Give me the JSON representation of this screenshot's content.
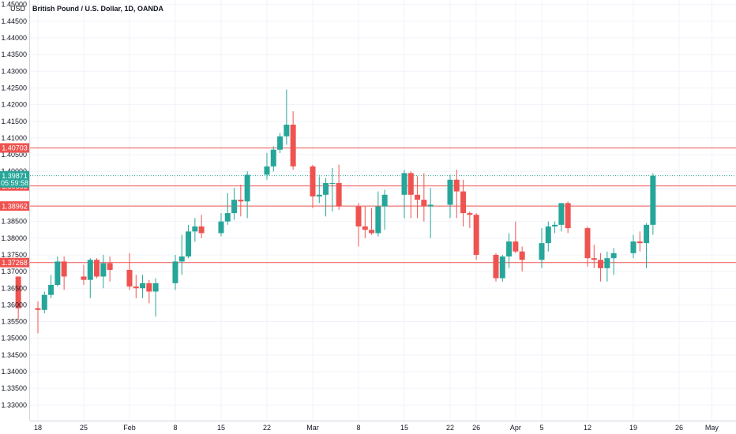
{
  "header": {
    "title": "British Pound / U.S. Dollar, 1D, OANDA",
    "unit": "USD"
  },
  "colors": {
    "up": "#26a69a",
    "down": "#ef5350",
    "level_line": "#ef5350",
    "grid": "#f0f3fa",
    "axis_text": "#131722",
    "current_price_line": "#26a69a"
  },
  "chart_data": {
    "type": "candlestick",
    "title": "British Pound / U.S. Dollar, 1D, OANDA",
    "ylabel": "USD",
    "ylim": [
      1.326,
      1.4555
    ],
    "y_ticks": [
      "1.33000",
      "1.33500",
      "1.34000",
      "1.34500",
      "1.35000",
      "1.35500",
      "1.36000",
      "1.36500",
      "1.37000",
      "1.37500",
      "1.38000",
      "1.38500",
      "1.39000",
      "1.39500",
      "1.40000",
      "1.40500",
      "1.41000",
      "1.41500",
      "1.42000",
      "1.42500",
      "1.43000",
      "1.43500",
      "1.44000",
      "1.44500",
      "1.45000"
    ],
    "x_ticks": [
      {
        "label": "18",
        "date": "2021-01-18"
      },
      {
        "label": "25",
        "date": "2021-01-25"
      },
      {
        "label": "Feb",
        "date": "2021-02-01"
      },
      {
        "label": "8",
        "date": "2021-02-08"
      },
      {
        "label": "15",
        "date": "2021-02-15"
      },
      {
        "label": "22",
        "date": "2021-02-22"
      },
      {
        "label": "Mar",
        "date": "2021-03-01"
      },
      {
        "label": "8",
        "date": "2021-03-08"
      },
      {
        "label": "15",
        "date": "2021-03-15"
      },
      {
        "label": "22",
        "date": "2021-03-22"
      },
      {
        "label": "26",
        "date": "2021-03-26"
      },
      {
        "label": "Apr",
        "date": "2021-04-01"
      },
      {
        "label": "5",
        "date": "2021-04-05"
      },
      {
        "label": "12",
        "date": "2021-04-12"
      },
      {
        "label": "19",
        "date": "2021-04-19"
      },
      {
        "label": "26",
        "date": "2021-04-26"
      },
      {
        "label": "May",
        "date": "2021-05-01"
      }
    ],
    "candles": [
      {
        "date": "2021-01-15",
        "open": 1.3685,
        "high": 1.3685,
        "low": 1.3555,
        "close": 1.359
      },
      {
        "date": "2021-01-18",
        "open": 1.359,
        "high": 1.361,
        "low": 1.3515,
        "close": 1.3585
      },
      {
        "date": "2021-01-19",
        "open": 1.3585,
        "high": 1.364,
        "low": 1.3575,
        "close": 1.363
      },
      {
        "date": "2021-01-20",
        "open": 1.363,
        "high": 1.369,
        "low": 1.362,
        "close": 1.366
      },
      {
        "date": "2021-01-21",
        "open": 1.366,
        "high": 1.3745,
        "low": 1.3655,
        "close": 1.373
      },
      {
        "date": "2021-01-22",
        "open": 1.373,
        "high": 1.3745,
        "low": 1.3645,
        "close": 1.3685
      },
      {
        "date": "2021-01-25",
        "open": 1.3685,
        "high": 1.372,
        "low": 1.366,
        "close": 1.3675
      },
      {
        "date": "2021-01-26",
        "open": 1.3675,
        "high": 1.374,
        "low": 1.362,
        "close": 1.3735
      },
      {
        "date": "2021-01-27",
        "open": 1.3735,
        "high": 1.374,
        "low": 1.368,
        "close": 1.3685
      },
      {
        "date": "2021-01-28",
        "open": 1.3685,
        "high": 1.375,
        "low": 1.365,
        "close": 1.3725
      },
      {
        "date": "2021-01-29",
        "open": 1.3725,
        "high": 1.3745,
        "low": 1.367,
        "close": 1.3705
      },
      {
        "date": "2021-02-01",
        "open": 1.3705,
        "high": 1.3755,
        "low": 1.3645,
        "close": 1.3655
      },
      {
        "date": "2021-02-02",
        "open": 1.3655,
        "high": 1.369,
        "low": 1.362,
        "close": 1.365
      },
      {
        "date": "2021-02-03",
        "open": 1.365,
        "high": 1.369,
        "low": 1.362,
        "close": 1.3665
      },
      {
        "date": "2021-02-04",
        "open": 1.3665,
        "high": 1.3675,
        "low": 1.3605,
        "close": 1.364
      },
      {
        "date": "2021-02-05",
        "open": 1.364,
        "high": 1.368,
        "low": 1.3565,
        "close": 1.3665
      },
      {
        "date": "2021-02-08",
        "open": 1.3665,
        "high": 1.375,
        "low": 1.3645,
        "close": 1.373
      },
      {
        "date": "2021-02-09",
        "open": 1.373,
        "high": 1.381,
        "low": 1.369,
        "close": 1.3745
      },
      {
        "date": "2021-02-10",
        "open": 1.3745,
        "high": 1.384,
        "low": 1.374,
        "close": 1.382
      },
      {
        "date": "2021-02-11",
        "open": 1.382,
        "high": 1.386,
        "low": 1.379,
        "close": 1.3835
      },
      {
        "date": "2021-02-12",
        "open": 1.3835,
        "high": 1.387,
        "low": 1.38,
        "close": 1.3815
      },
      {
        "date": "2021-02-15",
        "open": 1.3815,
        "high": 1.3875,
        "low": 1.3805,
        "close": 1.385
      },
      {
        "date": "2021-02-16",
        "open": 1.385,
        "high": 1.3935,
        "low": 1.384,
        "close": 1.3875
      },
      {
        "date": "2021-02-17",
        "open": 1.3875,
        "high": 1.395,
        "low": 1.3855,
        "close": 1.3915
      },
      {
        "date": "2021-02-18",
        "open": 1.3915,
        "high": 1.396,
        "low": 1.3865,
        "close": 1.391
      },
      {
        "date": "2021-02-19",
        "open": 1.391,
        "high": 1.4,
        "low": 1.386,
        "close": 1.399
      },
      {
        "date": "2021-02-22",
        "open": 1.399,
        "high": 1.4055,
        "low": 1.3975,
        "close": 1.4015
      },
      {
        "date": "2021-02-23",
        "open": 1.4015,
        "high": 1.4075,
        "low": 1.4,
        "close": 1.4065
      },
      {
        "date": "2021-02-24",
        "open": 1.4065,
        "high": 1.4115,
        "low": 1.4055,
        "close": 1.4105
      },
      {
        "date": "2021-02-25",
        "open": 1.4105,
        "high": 1.4245,
        "low": 1.408,
        "close": 1.414
      },
      {
        "date": "2021-02-26",
        "open": 1.414,
        "high": 1.418,
        "low": 1.4005,
        "close": 1.4015
      },
      {
        "date": "2021-03-01",
        "open": 1.4015,
        "high": 1.402,
        "low": 1.389,
        "close": 1.3925
      },
      {
        "date": "2021-03-02",
        "open": 1.3925,
        "high": 1.3985,
        "low": 1.3905,
        "close": 1.393
      },
      {
        "date": "2021-03-03",
        "open": 1.393,
        "high": 1.398,
        "low": 1.3865,
        "close": 1.3965
      },
      {
        "date": "2021-03-04",
        "open": 1.3965,
        "high": 1.401,
        "low": 1.388,
        "close": 1.3965
      },
      {
        "date": "2021-03-05",
        "open": 1.3965,
        "high": 1.402,
        "low": 1.3885,
        "close": 1.3895
      },
      {
        "date": "2021-03-08",
        "open": 1.3895,
        "high": 1.3905,
        "low": 1.3775,
        "close": 1.3835
      },
      {
        "date": "2021-03-09",
        "open": 1.3835,
        "high": 1.3895,
        "low": 1.38,
        "close": 1.3825
      },
      {
        "date": "2021-03-10",
        "open": 1.3825,
        "high": 1.389,
        "low": 1.381,
        "close": 1.3815
      },
      {
        "date": "2021-03-11",
        "open": 1.3815,
        "high": 1.394,
        "low": 1.3805,
        "close": 1.3895
      },
      {
        "date": "2021-03-12",
        "open": 1.3895,
        "high": 1.3945,
        "low": 1.3825,
        "close": 1.393
      },
      {
        "date": "2021-03-15",
        "open": 1.393,
        "high": 1.4005,
        "low": 1.386,
        "close": 1.3995
      },
      {
        "date": "2021-03-16",
        "open": 1.3995,
        "high": 1.4,
        "low": 1.386,
        "close": 1.393
      },
      {
        "date": "2021-03-17",
        "open": 1.393,
        "high": 1.3985,
        "low": 1.386,
        "close": 1.3915
      },
      {
        "date": "2021-03-18",
        "open": 1.3915,
        "high": 1.3995,
        "low": 1.385,
        "close": 1.3895
      },
      {
        "date": "2021-03-19",
        "open": 1.3895,
        "high": 1.395,
        "low": 1.38,
        "close": 1.39
      },
      {
        "date": "2021-03-22",
        "open": 1.39,
        "high": 1.399,
        "low": 1.386,
        "close": 1.3975
      },
      {
        "date": "2021-03-23",
        "open": 1.3975,
        "high": 1.4005,
        "low": 1.386,
        "close": 1.394
      },
      {
        "date": "2021-03-24",
        "open": 1.394,
        "high": 1.3975,
        "low": 1.3835,
        "close": 1.3875
      },
      {
        "date": "2021-03-25",
        "open": 1.3875,
        "high": 1.388,
        "low": 1.383,
        "close": 1.387
      },
      {
        "date": "2021-03-26",
        "open": 1.387,
        "high": 1.3875,
        "low": 1.3735,
        "close": 1.375
      },
      {
        "date": "2021-03-29",
        "open": 1.375,
        "high": 1.3755,
        "low": 1.367,
        "close": 1.368
      },
      {
        "date": "2021-03-30",
        "open": 1.368,
        "high": 1.375,
        "low": 1.367,
        "close": 1.3745
      },
      {
        "date": "2021-03-31",
        "open": 1.3745,
        "high": 1.3815,
        "low": 1.371,
        "close": 1.379
      },
      {
        "date": "2021-04-01",
        "open": 1.379,
        "high": 1.385,
        "low": 1.3755,
        "close": 1.376
      },
      {
        "date": "2021-04-02",
        "open": 1.376,
        "high": 1.3775,
        "low": 1.37,
        "close": 1.3735
      },
      {
        "date": "2021-04-05",
        "open": 1.3735,
        "high": 1.383,
        "low": 1.371,
        "close": 1.3785
      },
      {
        "date": "2021-04-06",
        "open": 1.3785,
        "high": 1.385,
        "low": 1.376,
        "close": 1.3835
      },
      {
        "date": "2021-04-07",
        "open": 1.3835,
        "high": 1.385,
        "low": 1.3815,
        "close": 1.384
      },
      {
        "date": "2021-04-08",
        "open": 1.384,
        "high": 1.3905,
        "low": 1.382,
        "close": 1.3905
      },
      {
        "date": "2021-04-09",
        "open": 1.3905,
        "high": 1.391,
        "low": 1.3815,
        "close": 1.383
      },
      {
        "date": "2021-04-12",
        "open": 1.383,
        "high": 1.3835,
        "low": 1.3715,
        "close": 1.374
      },
      {
        "date": "2021-04-13",
        "open": 1.374,
        "high": 1.378,
        "low": 1.371,
        "close": 1.3735
      },
      {
        "date": "2021-04-14",
        "open": 1.3735,
        "high": 1.3755,
        "low": 1.367,
        "close": 1.371
      },
      {
        "date": "2021-04-15",
        "open": 1.371,
        "high": 1.376,
        "low": 1.367,
        "close": 1.374
      },
      {
        "date": "2021-04-16",
        "open": 1.374,
        "high": 1.377,
        "low": 1.369,
        "close": 1.3755
      },
      {
        "date": "2021-04-19",
        "open": 1.3755,
        "high": 1.381,
        "low": 1.374,
        "close": 1.379
      },
      {
        "date": "2021-04-20",
        "open": 1.379,
        "high": 1.382,
        "low": 1.376,
        "close": 1.3785
      },
      {
        "date": "2021-04-21",
        "open": 1.3785,
        "high": 1.3845,
        "low": 1.371,
        "close": 1.384
      },
      {
        "date": "2021-04-22",
        "open": 1.384,
        "high": 1.3995,
        "low": 1.381,
        "close": 1.3987
      }
    ],
    "horizontal_levels": [
      {
        "price": 1.40703,
        "label": "1.40703"
      },
      {
        "price": 1.39563,
        "label": "1.39563"
      },
      {
        "price": 1.38962,
        "label": "1.38962"
      },
      {
        "price": 1.37268,
        "label": "1.37268"
      }
    ],
    "current_price": {
      "price": 1.39871,
      "label": "1.39871",
      "countdown": "05:59:58"
    },
    "grid": true
  }
}
